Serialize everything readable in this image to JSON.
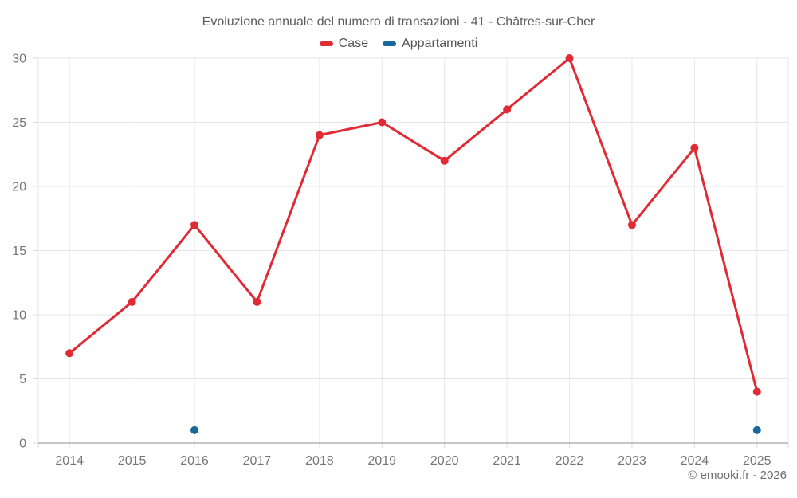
{
  "chart_data": {
    "type": "line",
    "title": "Evoluzione annuale del numero di transazioni - 41 - Châtres-sur-Cher",
    "categories": [
      "2014",
      "2015",
      "2016",
      "2017",
      "2018",
      "2019",
      "2020",
      "2021",
      "2022",
      "2023",
      "2024",
      "2025"
    ],
    "series": [
      {
        "name": "Case",
        "color": "#e02b35",
        "line": true,
        "values": [
          7,
          11,
          17,
          11,
          24,
          25,
          22,
          26,
          30,
          17,
          23,
          4
        ]
      },
      {
        "name": "Appartamenti",
        "color": "#17699b",
        "line": false,
        "values": [
          null,
          null,
          1,
          null,
          null,
          null,
          null,
          null,
          null,
          null,
          null,
          1
        ]
      }
    ],
    "ylim": [
      0,
      30
    ],
    "yticks": [
      0,
      5,
      10,
      15,
      20,
      25,
      30
    ],
    "grid": true,
    "legend_position": "top"
  },
  "copyright": "© emooki.fr - 2026",
  "colors": {
    "grid": "#e7e7e7",
    "axis": "#b3b3b3",
    "tick": "#dcdcdc",
    "label": "#757575",
    "title": "#5c5c5c",
    "legend_text": "#545454",
    "copyright": "#6e6e6e"
  }
}
